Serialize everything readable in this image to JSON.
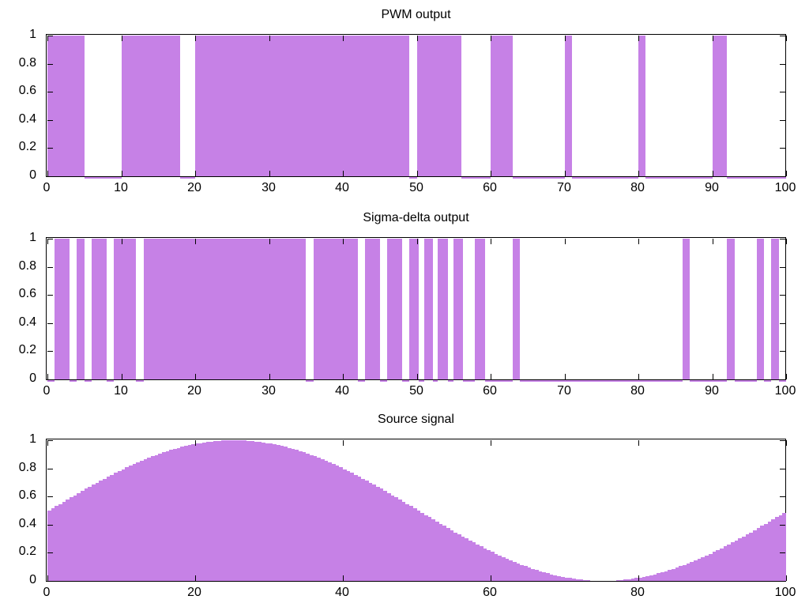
{
  "figure": {
    "background": "#ffffff",
    "fill_color": "#c681e6",
    "axis_color": "#000000",
    "text_color": "#000000"
  },
  "chart_data": [
    {
      "type": "area",
      "title": "PWM output",
      "xlabel": "",
      "ylabel": "",
      "x_range": [
        0,
        100
      ],
      "y_range": [
        0,
        1
      ],
      "grid": false,
      "legend": "none",
      "x_ticks": [
        "0",
        "10",
        "20",
        "30",
        "40",
        "50",
        "60",
        "70",
        "80",
        "90",
        "100"
      ],
      "x_tick_values": [
        0,
        10,
        20,
        30,
        40,
        50,
        60,
        70,
        80,
        90,
        100
      ],
      "y_ticks": [
        "0",
        "0.2",
        "0.4",
        "0.6",
        "0.8",
        "1"
      ],
      "y_tick_values": [
        0,
        0.2,
        0.4,
        0.6,
        0.8,
        1
      ],
      "on_value": 1,
      "off_value": 0,
      "on_intervals": [
        [
          0,
          5
        ],
        [
          10,
          18
        ],
        [
          20,
          49
        ],
        [
          50,
          56
        ],
        [
          60,
          63
        ],
        [
          70,
          71
        ],
        [
          80,
          81
        ],
        [
          90,
          92
        ]
      ],
      "fill_color": "#c681e6"
    },
    {
      "type": "area",
      "title": "Sigma-delta output",
      "xlabel": "",
      "ylabel": "",
      "x_range": [
        0,
        100
      ],
      "y_range": [
        0,
        1
      ],
      "grid": false,
      "legend": "none",
      "x_ticks": [
        "0",
        "10",
        "20",
        "30",
        "40",
        "50",
        "60",
        "70",
        "80",
        "90",
        "100"
      ],
      "x_tick_values": [
        0,
        10,
        20,
        30,
        40,
        50,
        60,
        70,
        80,
        90,
        100
      ],
      "y_ticks": [
        "0",
        "0.2",
        "0.4",
        "0.6",
        "0.8",
        "1"
      ],
      "y_tick_values": [
        0,
        0.2,
        0.4,
        0.6,
        0.8,
        1
      ],
      "on_value": 1,
      "off_value": 0,
      "on_intervals": [
        [
          1,
          3
        ],
        [
          4,
          5
        ],
        [
          6,
          8
        ],
        [
          9,
          12
        ],
        [
          13,
          35
        ],
        [
          36,
          42
        ],
        [
          43,
          45
        ],
        [
          46,
          48
        ],
        [
          49,
          50.3
        ],
        [
          51,
          52.2
        ],
        [
          52.8,
          54.2
        ],
        [
          55,
          56.3
        ],
        [
          57.9,
          59.2
        ],
        [
          63,
          64
        ],
        [
          86,
          87
        ],
        [
          92,
          93
        ],
        [
          96,
          97
        ],
        [
          98,
          99
        ]
      ],
      "fill_color": "#c681e6"
    },
    {
      "type": "area",
      "subtype": "staircase",
      "title": "Source signal",
      "xlabel": "",
      "ylabel": "",
      "x_range": [
        0,
        100
      ],
      "y_range": [
        0,
        1
      ],
      "grid": false,
      "legend": "none",
      "x_ticks": [
        "0",
        "20",
        "40",
        "60",
        "80",
        "100"
      ],
      "x_tick_values": [
        0,
        20,
        40,
        60,
        80,
        100
      ],
      "y_ticks": [
        "0",
        "0.2",
        "0.4",
        "0.6",
        "0.8",
        "1"
      ],
      "y_tick_values": [
        0,
        0.2,
        0.4,
        0.6,
        0.8,
        1
      ],
      "signal": {
        "formula": "y = 0.5 + 0.5*sin(2*pi*x/100)",
        "offset": 0.5,
        "amplitude": 0.5,
        "period": 100,
        "sample_step": 0.5
      },
      "fill_color": "#c681e6"
    }
  ]
}
